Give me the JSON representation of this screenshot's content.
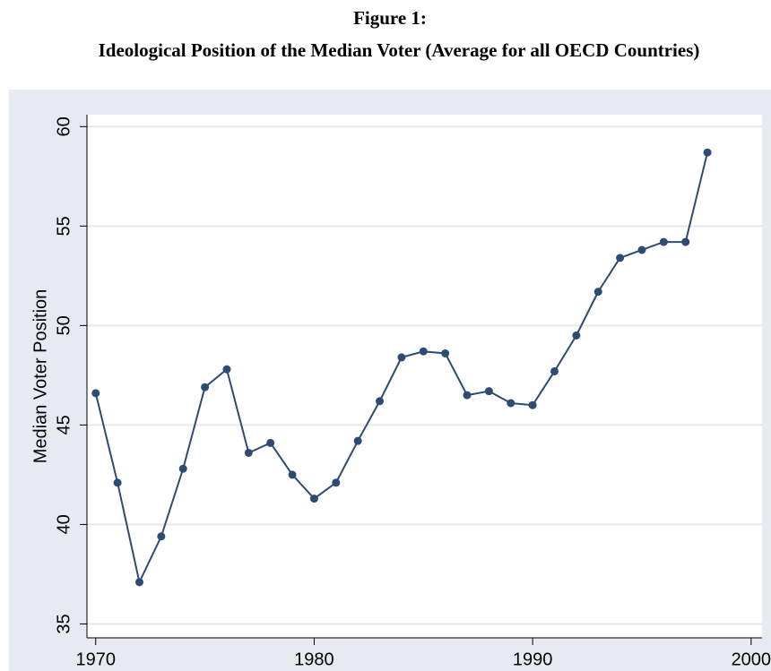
{
  "chart_data": {
    "type": "line",
    "title": "Figure 1:",
    "subtitle": "Ideological Position of the Median Voter (Average for all OECD Countries)",
    "y_label": "Median Voter Position",
    "x": [
      1970,
      1971,
      1972,
      1973,
      1974,
      1975,
      1976,
      1977,
      1978,
      1979,
      1980,
      1981,
      1982,
      1983,
      1984,
      1985,
      1986,
      1987,
      1988,
      1989,
      1990,
      1991,
      1992,
      1993,
      1994,
      1995,
      1996,
      1997,
      1998
    ],
    "values": [
      46.6,
      42.1,
      37.1,
      39.4,
      42.8,
      46.9,
      47.8,
      43.6,
      44.1,
      42.5,
      41.3,
      42.1,
      44.2,
      46.2,
      48.4,
      48.7,
      48.6,
      46.5,
      46.7,
      46.1,
      46.0,
      47.7,
      49.5,
      51.7,
      53.4,
      53.8,
      54.2,
      54.2,
      58.7
    ],
    "color": "#2e4b74",
    "xlim": [
      1969.6,
      2000.5
    ],
    "xticks": [
      1970,
      1980,
      1990,
      2000
    ],
    "ylim": [
      34.3,
      60.6
    ],
    "yticks": [
      35,
      40,
      45,
      50,
      55,
      60
    ],
    "grid": true
  }
}
